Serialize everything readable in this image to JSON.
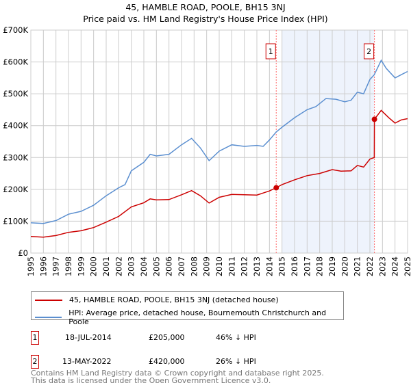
{
  "title": "45, HAMBLE ROAD, POOLE, BH15 3NJ",
  "subtitle": "Price paid vs. HM Land Registry's House Price Index (HPI)",
  "legend": {
    "price_label": "45, HAMBLE ROAD, POOLE, BH15 3NJ (detached house)",
    "hpi_label": "HPI: Average price, detached house, Bournemouth Christchurch and Poole"
  },
  "sales": [
    {
      "num": "1",
      "date": "18-JUL-2014",
      "price": "£205,000",
      "hpi_diff": "46% ↓ HPI"
    },
    {
      "num": "2",
      "date": "13-MAY-2022",
      "price": "£420,000",
      "hpi_diff": "26% ↓ HPI"
    }
  ],
  "footer": {
    "line1": "Contains HM Land Registry data © Crown copyright and database right 2025.",
    "line2": "This data is licensed under the Open Government Licence v3.0."
  },
  "colors": {
    "price": "#cc0000",
    "hpi": "#5b8fd0",
    "shade": "#eef3fc",
    "marker_line": "#ff6666"
  },
  "chart_data": {
    "type": "line",
    "xlim": [
      1995,
      2025
    ],
    "ylim": [
      0,
      700000
    ],
    "yticks": [
      0,
      100000,
      200000,
      300000,
      400000,
      500000,
      600000,
      700000
    ],
    "ytick_labels": [
      "£0",
      "£100K",
      "£200K",
      "£300K",
      "£400K",
      "£500K",
      "£600K",
      "£700K"
    ],
    "xticks": [
      "1995",
      "1996",
      "1997",
      "1998",
      "1999",
      "2000",
      "2001",
      "2002",
      "2003",
      "2004",
      "2005",
      "2006",
      "2007",
      "2008",
      "2009",
      "2010",
      "2011",
      "2012",
      "2013",
      "2014",
      "2015",
      "2016",
      "2017",
      "2018",
      "2019",
      "2020",
      "2021",
      "2022",
      "2023",
      "2024",
      "2025"
    ],
    "grid": true,
    "shaded_range": [
      2015.0,
      2022.36
    ],
    "markers": [
      {
        "label": "1",
        "x": 2014.54,
        "y": 205000
      },
      {
        "label": "2",
        "x": 2022.36,
        "y": 420000
      }
    ],
    "series": [
      {
        "name": "45, HAMBLE ROAD, POOLE, BH15 3NJ (detached house)",
        "x": [
          1995,
          1996,
          1997,
          1998,
          1999,
          2000,
          2001,
          2002,
          2003,
          2004,
          2004.5,
          2005,
          2006,
          2007,
          2007.8,
          2008.5,
          2009.2,
          2010,
          2011,
          2012,
          2013,
          2014,
          2014.54,
          2015,
          2016,
          2017,
          2018,
          2019,
          2019.7,
          2020.5,
          2021,
          2021.5,
          2022,
          2022.35,
          2022.36,
          2022.9,
          2023.5,
          2024,
          2024.5,
          2025
        ],
        "y": [
          52000,
          50000,
          55000,
          65000,
          70000,
          80000,
          97000,
          115000,
          145000,
          158000,
          170000,
          167000,
          168000,
          183000,
          196000,
          180000,
          157000,
          175000,
          184000,
          183000,
          182000,
          195000,
          205000,
          215000,
          230000,
          243000,
          250000,
          262000,
          257000,
          258000,
          275000,
          270000,
          295000,
          300000,
          420000,
          448000,
          425000,
          408000,
          418000,
          422000
        ]
      },
      {
        "name": "HPI: Average price, detached house, Bournemouth Christchurch and Poole",
        "x": [
          1995,
          1996,
          1997,
          1998,
          1999,
          2000,
          2001,
          2002,
          2002.5,
          2003,
          2004,
          2004.5,
          2005,
          2006,
          2007,
          2007.8,
          2008.5,
          2009.2,
          2010,
          2011,
          2012,
          2013,
          2013.5,
          2014,
          2014.54,
          2015,
          2016,
          2017,
          2017.7,
          2018.5,
          2019.3,
          2020,
          2020.5,
          2021,
          2021.5,
          2022,
          2022.35,
          2022.9,
          2023.3,
          2024,
          2024.5,
          2025
        ],
        "y": [
          95000,
          93000,
          102000,
          122000,
          131000,
          150000,
          180000,
          205000,
          215000,
          258000,
          285000,
          310000,
          305000,
          310000,
          340000,
          360000,
          330000,
          290000,
          320000,
          340000,
          335000,
          338000,
          335000,
          355000,
          380000,
          395000,
          425000,
          450000,
          460000,
          485000,
          483000,
          475000,
          480000,
          505000,
          500000,
          545000,
          560000,
          605000,
          580000,
          550000,
          560000,
          570000
        ]
      }
    ]
  }
}
